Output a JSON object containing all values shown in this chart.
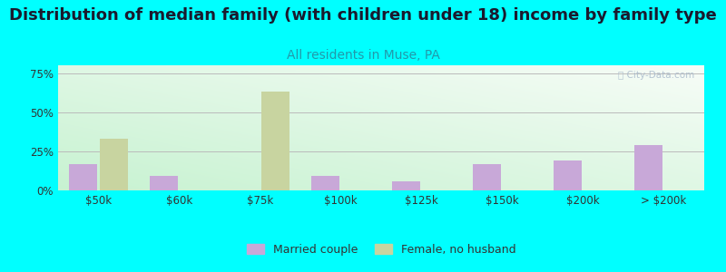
{
  "title": "Distribution of median family (with children under 18) income by family type",
  "subtitle": "All residents in Muse, PA",
  "categories": [
    "$50k",
    "$60k",
    "$75k",
    "$100k",
    "$125k",
    "$150k",
    "$200k",
    "> $200k"
  ],
  "married_values": [
    17,
    9,
    0,
    9,
    6,
    17,
    19,
    29
  ],
  "female_values": [
    33,
    0,
    63,
    0,
    0,
    0,
    0,
    0
  ],
  "married_color": "#c8a8d8",
  "female_color": "#c8d4a0",
  "outer_bg": "#00ffff",
  "ylim": [
    0,
    80
  ],
  "yticks": [
    0,
    25,
    50,
    75
  ],
  "ytick_labels": [
    "0%",
    "25%",
    "50%",
    "75%"
  ],
  "title_fontsize": 13,
  "subtitle_fontsize": 10,
  "legend_labels": [
    "Married couple",
    "Female, no husband"
  ],
  "bar_width": 0.35,
  "grid_color": "#bbbbbb",
  "watermark": "City-Data.com",
  "watermark_color": "#aabbcc"
}
